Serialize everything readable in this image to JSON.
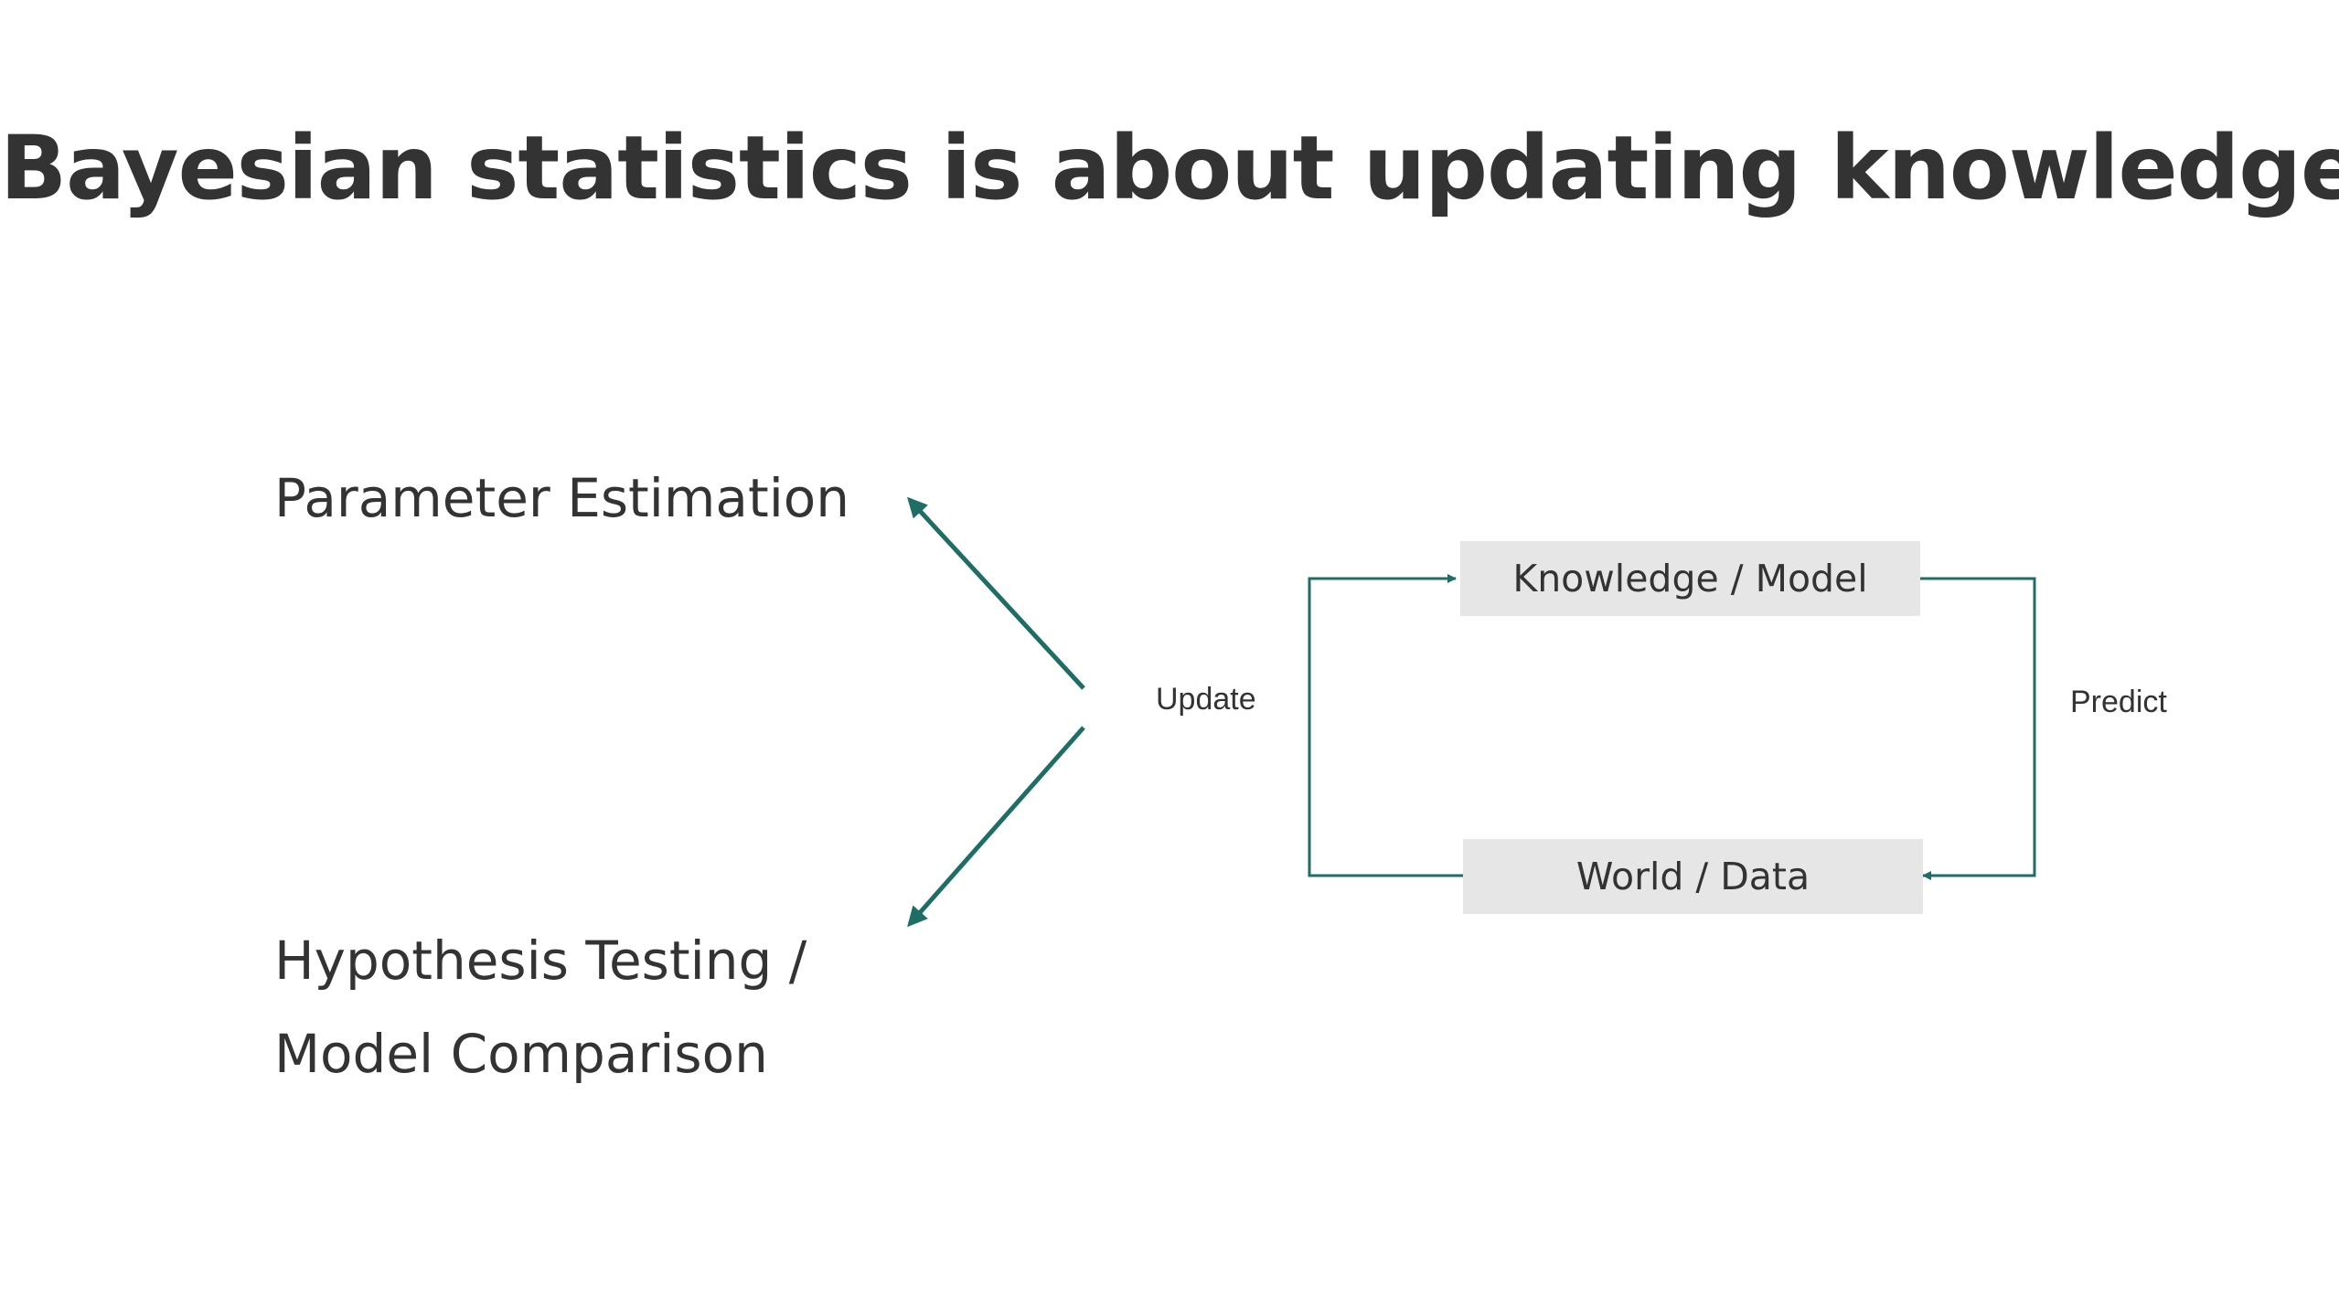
{
  "title": "Bayesian statistics is about updating knowledge",
  "left": {
    "top_label": "Parameter Estimation",
    "bottom_label_line1": "Hypothesis Testing /",
    "bottom_label_line2": "Model Comparison"
  },
  "cycle": {
    "top_box": "Knowledge / Model",
    "bottom_box": "World / Data",
    "left_edge_label": "Update",
    "right_edge_label": "Predict"
  },
  "colors": {
    "accent": "#1f6e66",
    "box_fill": "#e6e6e6",
    "text": "#333333"
  }
}
